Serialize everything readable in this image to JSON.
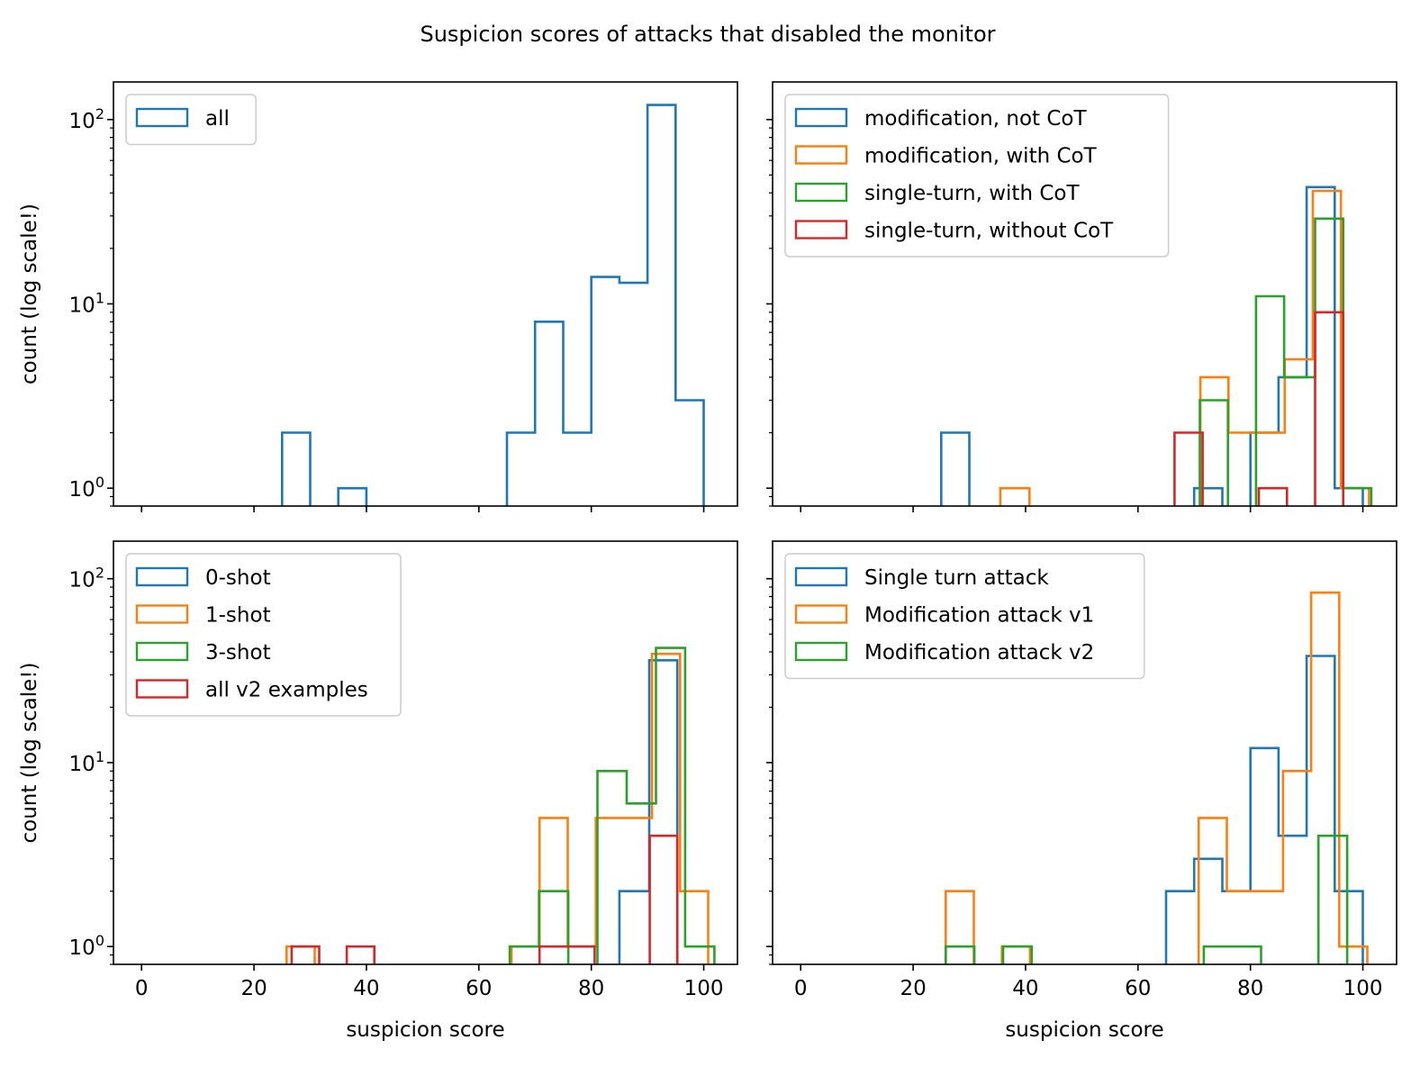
{
  "suptitle": "Suspicion scores of attacks that disabled the monitor",
  "colors": {
    "blue": "#1f77b4",
    "orange": "#ff7f0e",
    "green": "#2ca02c",
    "red": "#d62728"
  },
  "chart_data": [
    {
      "type": "histogram-step",
      "panel": "top-left",
      "xlabel": "",
      "ylabel": "count (log scale!)",
      "xlim": [
        -5,
        106
      ],
      "ylim": [
        0.8,
        160
      ],
      "yscale": "log",
      "x_ticks": [
        0,
        20,
        40,
        60,
        80,
        100
      ],
      "show_x_ticklabels": false,
      "show_y_ticklabels": true,
      "y_ticklabels": [
        "10^0",
        "10^1",
        "10^2"
      ],
      "legend": "upper left",
      "series": [
        {
          "name": "all",
          "color": "#1f77b4",
          "edges": [
            0,
            5,
            10,
            15,
            20,
            25,
            30,
            35,
            40,
            45,
            50,
            55,
            60,
            65,
            70,
            75,
            80,
            85,
            90,
            95,
            100
          ],
          "counts": [
            0,
            0,
            0,
            0,
            0,
            2,
            0,
            1,
            0,
            0,
            0,
            0,
            0,
            2,
            8,
            2,
            14,
            13,
            120,
            3
          ]
        }
      ]
    },
    {
      "type": "histogram-step",
      "panel": "top-right",
      "xlabel": "",
      "ylabel": "",
      "xlim": [
        -5,
        106
      ],
      "ylim": [
        0.8,
        160
      ],
      "yscale": "log",
      "x_ticks": [
        0,
        20,
        40,
        60,
        80,
        100
      ],
      "show_x_ticklabels": false,
      "show_y_ticklabels": false,
      "legend": "upper left",
      "series": [
        {
          "name": "modification, not CoT",
          "color": "#1f77b4",
          "edges": [
            25,
            30,
            35,
            40,
            45,
            50,
            55,
            60,
            65,
            70,
            75,
            80,
            85,
            90,
            95,
            100
          ],
          "counts": [
            2,
            0,
            0,
            0,
            0,
            0,
            0,
            0,
            0,
            1,
            0,
            2,
            4,
            43,
            1
          ]
        },
        {
          "name": "modification, with CoT",
          "color": "#ff7f0e",
          "edges": [
            35.5,
            40.7,
            45.9,
            51.1,
            56.3,
            61.5,
            66.7,
            71.1,
            76.1,
            81.1,
            86.1,
            91.1,
            96.1,
            101.1
          ],
          "counts": [
            1,
            0,
            0,
            0,
            0,
            0,
            0,
            4,
            2,
            2,
            5,
            41,
            1
          ]
        },
        {
          "name": "single-turn, with CoT",
          "color": "#2ca02c",
          "edges": [
            71,
            76,
            81,
            86,
            91.5,
            96.5,
            101.5
          ],
          "counts": [
            3,
            0,
            11,
            4,
            29,
            1
          ]
        },
        {
          "name": "single-turn, without CoT",
          "color": "#d62728",
          "edges": [
            66.5,
            71.5,
            76.5,
            81.5,
            86.5,
            91.5,
            96.5
          ],
          "counts": [
            2,
            0,
            0,
            1,
            0,
            9
          ]
        }
      ]
    },
    {
      "type": "histogram-step",
      "panel": "bottom-left",
      "xlabel": "suspicion score",
      "ylabel": "count (log scale!)",
      "xlim": [
        -5,
        106
      ],
      "ylim": [
        0.8,
        160
      ],
      "yscale": "log",
      "x_ticks": [
        0,
        20,
        40,
        60,
        80,
        100
      ],
      "show_x_ticklabels": true,
      "show_y_ticklabels": true,
      "y_ticklabels": [
        "10^0",
        "10^1",
        "10^2"
      ],
      "legend": "upper left",
      "series": [
        {
          "name": "0-shot",
          "color": "#1f77b4",
          "edges": [
            85,
            90.3,
            95.3
          ],
          "counts": [
            2,
            36
          ]
        },
        {
          "name": "1-shot",
          "color": "#ff7f0e",
          "edges": [
            25.8,
            30.8,
            35.8,
            40.8,
            45.8,
            50.8,
            55.8,
            60.8,
            65.8,
            70.8,
            75.8,
            80.8,
            85.8,
            90.8,
            95.8,
            100.8
          ],
          "counts": [
            1,
            0,
            0,
            0,
            0,
            0,
            0,
            0,
            1,
            5,
            1,
            5,
            5,
            39,
            2
          ]
        },
        {
          "name": "3-shot",
          "color": "#2ca02c",
          "edges": [
            65.5,
            70.7,
            75.9,
            81.1,
            86.3,
            91.5,
            96.7,
            101.9
          ],
          "counts": [
            1,
            2,
            0,
            9,
            6,
            42,
            1
          ]
        },
        {
          "name": "all v2 examples",
          "color": "#d62728",
          "edges": [
            26.7,
            31.6,
            36.5,
            41.4,
            46.3,
            51.2,
            56.1,
            61,
            65.9,
            70.8,
            75.7,
            80.6,
            85.5,
            90.4,
            95.3
          ],
          "counts": [
            1,
            0,
            1,
            0,
            0,
            0,
            0,
            0,
            0,
            1,
            1,
            0,
            0,
            4
          ]
        }
      ]
    },
    {
      "type": "histogram-step",
      "panel": "bottom-right",
      "xlabel": "suspicion score",
      "ylabel": "",
      "xlim": [
        -5,
        106
      ],
      "ylim": [
        0.8,
        160
      ],
      "yscale": "log",
      "x_ticks": [
        0,
        20,
        40,
        60,
        80,
        100
      ],
      "show_x_ticklabels": true,
      "show_y_ticklabels": false,
      "legend": "upper left",
      "series": [
        {
          "name": "Single turn attack",
          "color": "#1f77b4",
          "edges": [
            65,
            70,
            75,
            80,
            85,
            90,
            95,
            100
          ],
          "counts": [
            2,
            3,
            2,
            12,
            4,
            38,
            2
          ]
        },
        {
          "name": "Modification attack v1",
          "color": "#ff7f0e",
          "edges": [
            25.8,
            30.8,
            35.8,
            40.8,
            45.8,
            50.8,
            55.8,
            60.8,
            65.8,
            70.8,
            75.8,
            80.8,
            85.8,
            90.8,
            95.8,
            100.8
          ],
          "counts": [
            2,
            0,
            1,
            0,
            0,
            0,
            0,
            0,
            0,
            5,
            2,
            2,
            9,
            84,
            1
          ]
        },
        {
          "name": "Modification attack v2",
          "color": "#2ca02c",
          "edges": [
            25.8,
            30.9,
            36,
            41.1,
            46.2,
            51.3,
            56.4,
            61.5,
            66.6,
            71.7,
            76.8,
            81.9,
            87,
            92.1,
            97.2
          ],
          "counts": [
            1,
            0,
            1,
            0,
            0,
            0,
            0,
            0,
            0,
            1,
            1,
            0,
            0,
            4
          ]
        }
      ]
    }
  ]
}
